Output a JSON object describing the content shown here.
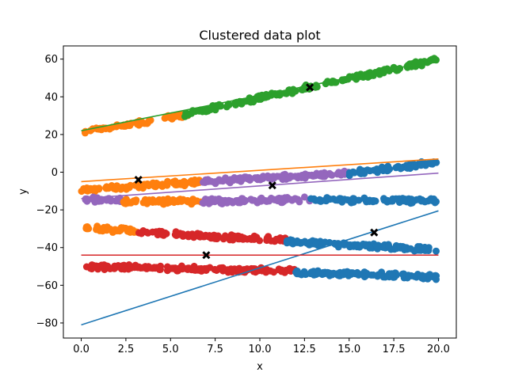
{
  "chart_data": {
    "type": "scatter",
    "title": "Clustered data plot",
    "xlabel": "x",
    "ylabel": "y",
    "xlim": [
      -1.0,
      21.0
    ],
    "ylim": [
      -88,
      67
    ],
    "xticks": [
      0.0,
      2.5,
      5.0,
      7.5,
      10.0,
      12.5,
      15.0,
      17.5,
      20.0
    ],
    "xtick_labels": [
      "0.0",
      "2.5",
      "5.0",
      "7.5",
      "10.0",
      "12.5",
      "15.0",
      "17.5",
      "20.0"
    ],
    "yticks": [
      -80,
      -60,
      -40,
      -20,
      0,
      20,
      40,
      60
    ],
    "ytick_labels": [
      "−80",
      "−60",
      "−40",
      "−20",
      "0",
      "20",
      "40",
      "60"
    ],
    "grid": false,
    "colors": {
      "blue": "#1f77b4",
      "orange": "#ff7f0e",
      "green": "#2ca02c",
      "red": "#d62728",
      "purple": "#9467bd",
      "center": "#000000"
    },
    "bands": [
      {
        "color": "orange",
        "segments": [
          [
            0.2,
            3.9
          ]
        ],
        "y0": 21.5,
        "y1": 27.0
      },
      {
        "color": "orange",
        "segments": [
          [
            4.5,
            6.0
          ]
        ],
        "y0": 28.5,
        "y1": 31.0
      },
      {
        "color": "green",
        "segments": [
          [
            5.8,
            19.9
          ]
        ],
        "y0": 31.0,
        "y1": 59.5
      },
      {
        "color": "orange",
        "segments": [
          [
            0.0,
            6.8
          ]
        ],
        "y0": -9.5,
        "y1": -5.0
      },
      {
        "color": "purple",
        "segments": [
          [
            6.8,
            15.0
          ]
        ],
        "y0": -5.0,
        "y1": -0.5
      },
      {
        "color": "blue",
        "segments": [
          [
            15.0,
            19.9
          ]
        ],
        "y0": -0.5,
        "y1": 5.0
      },
      {
        "color": "purple",
        "segments": [
          [
            0.0,
            2.3
          ]
        ],
        "y0": -14.5,
        "y1": -14.5
      },
      {
        "color": "orange",
        "segments": [
          [
            2.3,
            6.8
          ]
        ],
        "y0": -15.5,
        "y1": -15.5
      },
      {
        "color": "purple",
        "segments": [
          [
            6.8,
            12.8
          ]
        ],
        "y0": -15.5,
        "y1": -14.5
      },
      {
        "color": "blue",
        "segments": [
          [
            12.8,
            19.9
          ]
        ],
        "y0": -15.0,
        "y1": -15.0
      },
      {
        "color": "orange",
        "segments": [
          [
            0.0,
            3.2
          ]
        ],
        "y0": -29.5,
        "y1": -31.5
      },
      {
        "color": "red",
        "segments": [
          [
            3.2,
            11.5
          ]
        ],
        "y0": -32.0,
        "y1": -36.0
      },
      {
        "color": "blue",
        "segments": [
          [
            11.5,
            19.9
          ]
        ],
        "y0": -37.0,
        "y1": -41.0
      },
      {
        "color": "red",
        "segments": [
          [
            0.0,
            12.0
          ]
        ],
        "y0": -50.0,
        "y1": -52.5
      },
      {
        "color": "blue",
        "segments": [
          [
            12.0,
            19.9
          ]
        ],
        "y0": -53.0,
        "y1": -55.5
      }
    ],
    "centers": [
      {
        "x": 12.8,
        "y": 45
      },
      {
        "x": 3.2,
        "y": -4
      },
      {
        "x": 10.7,
        "y": -7
      },
      {
        "x": 16.4,
        "y": -32
      },
      {
        "x": 7.0,
        "y": -44
      }
    ],
    "lines": [
      {
        "color": "green",
        "x0": 0.0,
        "y0": 22.0,
        "x1": 20.0,
        "y1": 59.5
      },
      {
        "color": "orange",
        "x0": 0.0,
        "y0": -5.0,
        "x1": 20.0,
        "y1": 7.0
      },
      {
        "color": "purple",
        "x0": 0.0,
        "y0": -14.0,
        "x1": 20.0,
        "y1": -0.5
      },
      {
        "color": "blue",
        "x0": 0.0,
        "y0": -81.0,
        "x1": 20.0,
        "y1": -20.5
      },
      {
        "color": "red",
        "x0": 0.0,
        "y0": -44.0,
        "x1": 20.0,
        "y1": -44.0
      }
    ]
  }
}
